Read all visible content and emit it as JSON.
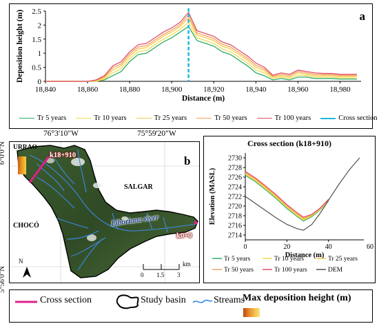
{
  "panel_a": {
    "letter": "a",
    "legend": [
      "Tr 5 years",
      "Tr 10 years",
      "Tr 25 years",
      "Tr 50 years",
      "Tr 100 years",
      "Cross section"
    ]
  },
  "panel_b": {
    "letter": "b",
    "lon_labels": [
      "76°3'10\"W",
      "75°59'20\"W"
    ],
    "lat_labels": [
      "6°0'0\"N",
      "5°56'0\"N"
    ],
    "place_labels": [
      "URRAO",
      "SALGAR",
      "CHOCÓ"
    ],
    "river_label": "Liboriana river",
    "km_labels": [
      "k18+910",
      "k0+0"
    ],
    "scale_ticks": [
      "0",
      "1.5",
      "3"
    ],
    "scale_unit": "km",
    "north": "N"
  },
  "panel_c": {
    "title": "Cross section (k18+910)",
    "legend": [
      "Tr 5 years",
      "Tr 10 years",
      "Tr 25 years",
      "Tr 50 years",
      "Tr 100 years",
      "DEM"
    ]
  },
  "bottom_legend": {
    "cross_section": "Cross section",
    "study_basin": "Study basin",
    "streams": "Streams",
    "max_dep": "Max deposition height (m)"
  },
  "colors": {
    "tr5": "#2eaa6a",
    "tr10": "#f0dc50",
    "tr25": "#f4c84a",
    "tr50": "#f5a05a",
    "tr100": "#e0506a",
    "cross": "#1fb6e0",
    "dem": "#505050",
    "magenta": "#e0208c"
  },
  "chart_data": [
    {
      "type": "line",
      "title": "",
      "xlabel": "Distance (m)",
      "ylabel": "Deposition height (m)",
      "xlim": [
        18840,
        18990
      ],
      "ylim": [
        0,
        2.5
      ],
      "xticks": [
        18840,
        18860,
        18880,
        18900,
        18920,
        18940,
        18960,
        18980
      ],
      "yticks": [
        0,
        0.5,
        1,
        1.5,
        2,
        2.5
      ],
      "cross_section_x": 18908,
      "x": [
        18840,
        18852,
        18860,
        18864,
        18868,
        18872,
        18876,
        18880,
        18884,
        18888,
        18892,
        18896,
        18900,
        18904,
        18908,
        18912,
        18916,
        18920,
        18924,
        18928,
        18932,
        18936,
        18940,
        18944,
        18948,
        18952,
        18956,
        18960,
        18964,
        18968,
        18972,
        18976,
        18980,
        18984,
        18988
      ],
      "series": [
        {
          "name": "Tr 5 years",
          "values": [
            0,
            0,
            0,
            0,
            0.05,
            0.2,
            0.35,
            0.7,
            0.95,
            1.0,
            1.2,
            1.4,
            1.55,
            1.75,
            1.95,
            1.45,
            1.35,
            1.25,
            1.05,
            0.95,
            0.75,
            0.55,
            0.3,
            0.2,
            0.05,
            0.1,
            0.05,
            0.15,
            0.15,
            0.1,
            0.1,
            0.1,
            0.08,
            0.08,
            0.08
          ]
        },
        {
          "name": "Tr 10 years",
          "values": [
            0,
            0,
            0,
            0,
            0.08,
            0.3,
            0.45,
            0.8,
            1.05,
            1.1,
            1.3,
            1.5,
            1.65,
            1.85,
            2.1,
            1.55,
            1.45,
            1.35,
            1.15,
            1.05,
            0.85,
            0.65,
            0.4,
            0.3,
            0.1,
            0.15,
            0.1,
            0.22,
            0.2,
            0.15,
            0.15,
            0.15,
            0.12,
            0.12,
            0.12
          ]
        },
        {
          "name": "Tr 25 years",
          "values": [
            0,
            0,
            0,
            0.02,
            0.12,
            0.4,
            0.55,
            0.9,
            1.15,
            1.2,
            1.4,
            1.6,
            1.75,
            1.95,
            2.25,
            1.65,
            1.55,
            1.45,
            1.25,
            1.15,
            0.95,
            0.75,
            0.5,
            0.38,
            0.15,
            0.2,
            0.15,
            0.3,
            0.25,
            0.2,
            0.2,
            0.2,
            0.17,
            0.17,
            0.17
          ]
        },
        {
          "name": "Tr 50 years",
          "values": [
            0,
            0,
            0,
            0.03,
            0.16,
            0.48,
            0.62,
            0.98,
            1.22,
            1.27,
            1.47,
            1.67,
            1.82,
            2.02,
            2.35,
            1.72,
            1.62,
            1.52,
            1.32,
            1.22,
            1.02,
            0.82,
            0.57,
            0.44,
            0.18,
            0.25,
            0.2,
            0.35,
            0.3,
            0.25,
            0.24,
            0.24,
            0.21,
            0.21,
            0.21
          ]
        },
        {
          "name": "Tr 100 years",
          "values": [
            0,
            0,
            0,
            0.05,
            0.2,
            0.55,
            0.7,
            1.05,
            1.3,
            1.35,
            1.55,
            1.75,
            1.9,
            2.1,
            2.45,
            1.8,
            1.7,
            1.6,
            1.4,
            1.3,
            1.1,
            0.9,
            0.65,
            0.5,
            0.22,
            0.3,
            0.25,
            0.4,
            0.35,
            0.3,
            0.28,
            0.28,
            0.25,
            0.25,
            0.25
          ]
        }
      ]
    },
    {
      "type": "line",
      "title": "Cross section (k18+910)",
      "xlabel": "Distance (m)",
      "ylabel": "Elevation (MASL)",
      "xlim": [
        0,
        57
      ],
      "ylim": [
        2713,
        2731
      ],
      "xticks": [
        0,
        20,
        40,
        60
      ],
      "yticks": [
        2714,
        2716,
        2718,
        2720,
        2722,
        2724,
        2726,
        2728,
        2730
      ],
      "x": [
        0,
        5,
        10,
        15,
        20,
        25,
        28,
        32,
        36,
        40
      ],
      "series": [
        {
          "name": "Tr 5 years",
          "values": [
            2726.4,
            2725.0,
            2723.3,
            2721.5,
            2719.5,
            2717.8,
            2716.9,
            2717.8,
            2719.2,
            2721.0
          ]
        },
        {
          "name": "Tr 10 years",
          "values": [
            2726.6,
            2725.2,
            2723.5,
            2721.7,
            2719.7,
            2718.0,
            2717.1,
            2718.0,
            2719.3,
            2721.1
          ]
        },
        {
          "name": "Tr 25 years",
          "values": [
            2726.8,
            2725.4,
            2723.7,
            2721.9,
            2719.9,
            2718.2,
            2717.3,
            2718.1,
            2719.4,
            2721.2
          ]
        },
        {
          "name": "Tr 50 years",
          "values": [
            2727.0,
            2725.6,
            2723.9,
            2722.1,
            2720.1,
            2718.4,
            2717.5,
            2718.2,
            2719.5,
            2721.3
          ]
        },
        {
          "name": "Tr 100 years",
          "values": [
            2727.2,
            2725.8,
            2724.1,
            2722.3,
            2720.3,
            2718.6,
            2717.7,
            2718.3,
            2719.6,
            2721.4
          ]
        },
        {
          "name": "DEM",
          "x": [
            0,
            5,
            10,
            15,
            20,
            25,
            28,
            32,
            36,
            40,
            45,
            50,
            55
          ],
          "values": [
            2722.0,
            2720.5,
            2719.0,
            2717.5,
            2716.2,
            2715.3,
            2715.0,
            2716.2,
            2718.5,
            2721.2,
            2724.5,
            2727.5,
            2730.0
          ]
        }
      ]
    }
  ]
}
